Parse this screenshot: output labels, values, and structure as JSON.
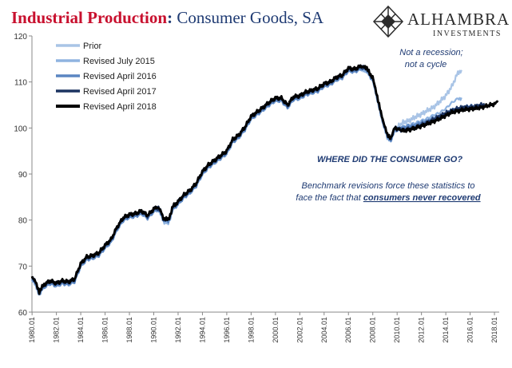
{
  "header": {
    "title_main": "Industrial Production",
    "title_sep": ":",
    "title_rest": " Consumer Goods, SA"
  },
  "brand": {
    "name": "ALHAMBRA",
    "sub": "INVESTMENTS",
    "logo_icon": "diamond-lattice-icon"
  },
  "annotations": {
    "note1_line1": "Not a recession;",
    "note1_line2": "not a cycle",
    "heading": "WHERE DID THE CONSUMER GO?",
    "body_line1": "Benchmark revisions force these statistics to",
    "body_line2_prefix": "face the fact that ",
    "body_line2_emph": "consumers never recovered"
  },
  "chart_data": {
    "type": "line",
    "title": "Industrial Production: Consumer Goods, SA",
    "xlabel": "",
    "ylabel": "",
    "xlim": [
      1980.0,
      2018.4
    ],
    "ylim": [
      60,
      120
    ],
    "yticks": [
      60,
      70,
      80,
      90,
      100,
      110,
      120
    ],
    "xticks": [
      "1980.01",
      "1982.01",
      "1984.01",
      "1986.01",
      "1988.01",
      "1990.01",
      "1992.01",
      "1994.01",
      "1996.01",
      "1998.01",
      "2000.01",
      "2002.01",
      "2004.01",
      "2006.01",
      "2008.01",
      "2010.01",
      "2012.01",
      "2014.01",
      "2016.01",
      "2018.01"
    ],
    "grid": false,
    "legend_position": "top-left",
    "base_history": {
      "x": [
        1980.0,
        1980.3,
        1980.6,
        1981.0,
        1981.5,
        1982.0,
        1982.5,
        1983.0,
        1983.5,
        1984.0,
        1984.5,
        1985.0,
        1985.5,
        1986.0,
        1986.5,
        1987.0,
        1987.5,
        1988.0,
        1988.5,
        1989.0,
        1989.5,
        1990.0,
        1990.4,
        1990.8,
        1991.2,
        1991.6,
        1992.0,
        1992.5,
        1993.0,
        1993.5,
        1994.0,
        1994.5,
        1995.0,
        1995.5,
        1996.0,
        1996.5,
        1997.0,
        1997.5,
        1998.0,
        1998.5,
        1999.0,
        1999.5,
        2000.0,
        2000.5,
        2001.0,
        2001.5,
        2002.0,
        2002.5,
        2003.0,
        2003.5,
        2004.0,
        2004.5,
        2005.0,
        2005.5,
        2006.0,
        2006.5,
        2007.0,
        2007.3,
        2007.6,
        2008.0,
        2008.3,
        2008.6,
        2008.9,
        2009.2,
        2009.5,
        2009.8
      ],
      "y": [
        67.5,
        66.5,
        64.5,
        66.0,
        66.8,
        66.3,
        66.8,
        66.6,
        67.2,
        70.5,
        72.0,
        72.3,
        72.9,
        74.5,
        75.8,
        78.5,
        80.5,
        81.2,
        81.4,
        82.0,
        81.0,
        82.4,
        82.9,
        80.5,
        80.0,
        83.0,
        84.0,
        85.5,
        86.5,
        88.0,
        90.5,
        92.0,
        93.0,
        94.0,
        95.0,
        97.5,
        98.5,
        100.2,
        102.5,
        103.5,
        104.5,
        105.6,
        106.5,
        106.5,
        105.0,
        106.8,
        107.0,
        107.8,
        108.2,
        108.6,
        109.6,
        110.0,
        111.0,
        111.5,
        113.0,
        112.8,
        113.4,
        113.5,
        112.5,
        111.0,
        107.5,
        104.5,
        101.0,
        98.5,
        98.0,
        100.0
      ]
    },
    "series": [
      {
        "name": "Prior",
        "color": "#a9c4e6",
        "width": 2.2,
        "offset": -0.2,
        "x": [
          2009.8,
          2010.5,
          2011.0,
          2011.5,
          2012.0,
          2012.5,
          2013.0,
          2013.5,
          2014.0,
          2014.5,
          2015.0,
          2015.3
        ],
        "y": [
          100.5,
          101.2,
          101.6,
          102.4,
          103.0,
          103.8,
          104.5,
          105.7,
          107.0,
          109.0,
          112.0,
          112.6
        ]
      },
      {
        "name": "Revised July 2015",
        "color": "#8fb3e0",
        "width": 2.2,
        "offset": -0.7,
        "x": [
          2009.8,
          2010.5,
          2011.0,
          2011.5,
          2012.0,
          2012.5,
          2013.0,
          2013.5,
          2014.0,
          2014.5,
          2015.0,
          2015.3
        ],
        "y": [
          99.5,
          100.3,
          100.7,
          101.1,
          101.6,
          102.1,
          102.8,
          103.3,
          104.2,
          105.5,
          106.4,
          106.6
        ]
      },
      {
        "name": "Revised April 2016",
        "color": "#5b86c2",
        "width": 2.4,
        "offset": -0.4,
        "x": [
          2009.8,
          2010.5,
          2011.0,
          2011.5,
          2012.0,
          2012.5,
          2013.0,
          2013.5,
          2014.0,
          2014.5,
          2015.0,
          2015.5,
          2016.0,
          2016.2
        ],
        "y": [
          99.2,
          100.0,
          100.2,
          100.5,
          101.0,
          101.4,
          102.0,
          102.5,
          103.1,
          103.8,
          104.1,
          104.4,
          104.6,
          104.8
        ]
      },
      {
        "name": "Revised April 2017",
        "color": "#1c3461",
        "width": 2.4,
        "offset": -0.1,
        "x": [
          2009.8,
          2010.5,
          2011.0,
          2011.5,
          2012.0,
          2012.5,
          2013.0,
          2013.5,
          2014.0,
          2014.5,
          2015.0,
          2015.5,
          2016.0,
          2016.5,
          2017.0,
          2017.2
        ],
        "y": [
          99.0,
          99.6,
          99.8,
          100.1,
          100.7,
          101.2,
          101.9,
          102.6,
          103.3,
          103.8,
          104.3,
          104.6,
          104.5,
          104.8,
          105.1,
          105.3
        ]
      },
      {
        "name": "Revised April 2018",
        "color": "#000000",
        "width": 2.8,
        "offset": 0.0,
        "x": [
          2009.8,
          2010.5,
          2011.0,
          2011.5,
          2012.0,
          2012.5,
          2013.0,
          2013.5,
          2014.0,
          2014.5,
          2015.0,
          2015.5,
          2016.0,
          2016.5,
          2017.0,
          2017.5,
          2018.0,
          2018.3
        ],
        "y": [
          99.0,
          99.4,
          99.6,
          100.0,
          100.4,
          100.9,
          101.4,
          102.0,
          102.7,
          103.4,
          103.7,
          104.0,
          104.1,
          104.3,
          104.5,
          104.9,
          105.2,
          105.6
        ]
      }
    ]
  }
}
